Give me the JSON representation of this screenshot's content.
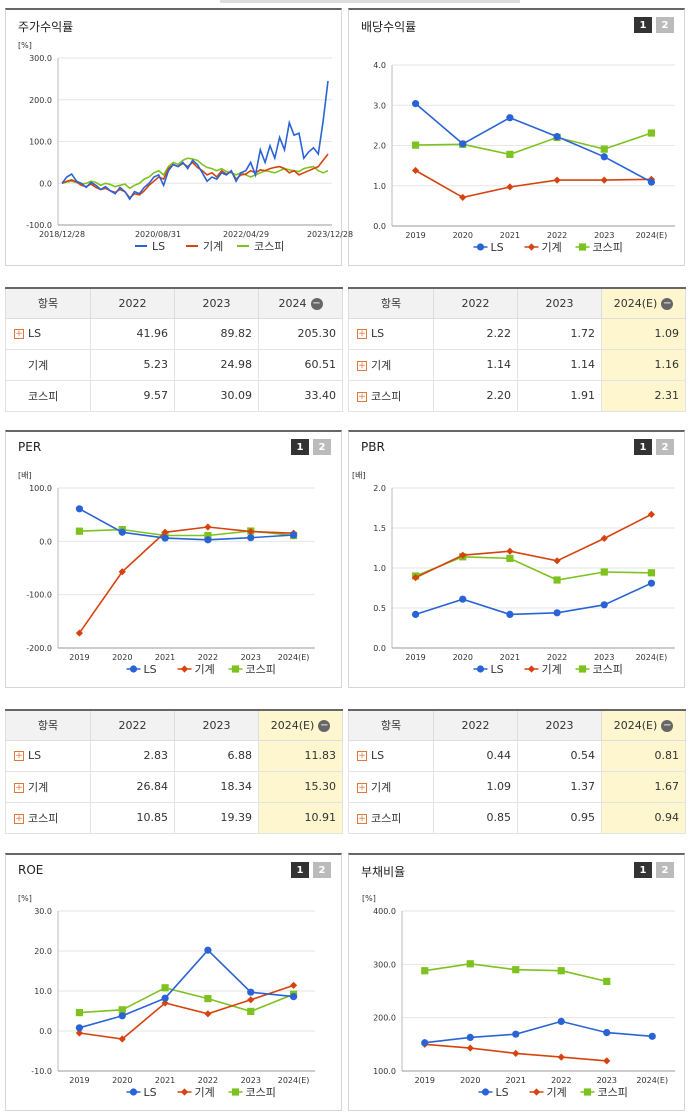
{
  "panels": [
    {
      "id": "p1",
      "title": "주가수익률",
      "buttons": [],
      "unit": "[%]"
    },
    {
      "id": "p2",
      "title": "배당수익률",
      "buttons": [
        "1",
        "2"
      ],
      "unit": ""
    },
    {
      "id": "p3",
      "title": "PER",
      "buttons": [
        "1",
        "2"
      ],
      "unit": "[배]"
    },
    {
      "id": "p4",
      "title": "PBR",
      "buttons": [
        "1",
        "2"
      ],
      "unit": "[배]"
    },
    {
      "id": "p5",
      "title": "ROE",
      "buttons": [
        "1",
        "2"
      ],
      "unit": "[%]"
    },
    {
      "id": "p6",
      "title": "부채비율",
      "buttons": [
        "1",
        "2"
      ],
      "unit": "[%]"
    }
  ],
  "colors": {
    "LS": "#2a63d6",
    "기계": "#d6430f",
    "코스피": "#7dc21e"
  },
  "chart_data": [
    {
      "type": "line",
      "id": "p1",
      "title": "주가수익률",
      "ylabel": "[%]",
      "ylim": [
        -100,
        300
      ],
      "yticks": [
        -100,
        0,
        100,
        200,
        300
      ],
      "xticklabels": [
        "2018/12/28",
        "2020/08/31",
        "2022/04/29",
        "2023/12/28"
      ],
      "series": [
        {
          "name": "LS",
          "values": [
            0,
            15,
            22,
            5,
            0,
            -10,
            2,
            -5,
            -15,
            -8,
            -18,
            -25,
            -10,
            -20,
            -38,
            -20,
            -25,
            -10,
            0,
            15,
            20,
            -5,
            30,
            45,
            40,
            50,
            35,
            55,
            45,
            25,
            5,
            15,
            10,
            25,
            20,
            30,
            5,
            25,
            30,
            50,
            20,
            80,
            50,
            90,
            60,
            110,
            80,
            145,
            115,
            120,
            60,
            75,
            85,
            70,
            150,
            245
          ]
        },
        {
          "name": "기계",
          "values": [
            0,
            5,
            8,
            3,
            -5,
            -8,
            -2,
            -10,
            -15,
            -12,
            -18,
            -22,
            -15,
            -20,
            -35,
            -25,
            -28,
            -18,
            -5,
            5,
            15,
            10,
            35,
            45,
            40,
            48,
            40,
            50,
            38,
            30,
            20,
            25,
            15,
            30,
            22,
            28,
            10,
            20,
            22,
            30,
            25,
            32,
            30,
            35,
            38,
            40,
            35,
            25,
            30,
            20,
            25,
            30,
            35,
            40,
            55,
            70
          ]
        },
        {
          "name": "코스피",
          "values": [
            0,
            3,
            5,
            2,
            -2,
            0,
            5,
            2,
            -5,
            0,
            -3,
            -8,
            -5,
            -2,
            -12,
            -5,
            0,
            10,
            15,
            25,
            30,
            20,
            40,
            50,
            45,
            55,
            60,
            58,
            55,
            45,
            38,
            35,
            30,
            35,
            28,
            25,
            20,
            25,
            20,
            15,
            20,
            25,
            30,
            28,
            25,
            30,
            35,
            32,
            30,
            28,
            35,
            38,
            40,
            30,
            25,
            30
          ]
        }
      ],
      "legend": [
        "LS",
        "기계",
        "코스피"
      ]
    },
    {
      "type": "line",
      "id": "p2",
      "title": "배당수익률",
      "ylim": [
        0,
        4
      ],
      "yticks": [
        0,
        1,
        2,
        3,
        4
      ],
      "x": [
        "2019",
        "2020",
        "2021",
        "2022",
        "2023",
        "2024(E)"
      ],
      "series": [
        {
          "name": "LS",
          "values": [
            3.04,
            2.04,
            2.69,
            2.22,
            1.72,
            1.09
          ]
        },
        {
          "name": "기계",
          "values": [
            1.38,
            0.71,
            0.97,
            1.14,
            1.14,
            1.16
          ]
        },
        {
          "name": "코스피",
          "values": [
            2.01,
            2.03,
            1.78,
            2.2,
            1.91,
            2.31
          ]
        }
      ],
      "legend": [
        "LS",
        "기계",
        "코스피"
      ]
    },
    {
      "type": "line",
      "id": "p3",
      "title": "PER",
      "ylabel": "[배]",
      "ylim": [
        -200,
        100
      ],
      "yticks": [
        -200,
        -100,
        0,
        100
      ],
      "x": [
        "2019",
        "2020",
        "2021",
        "2022",
        "2023",
        "2024(E)"
      ],
      "series": [
        {
          "name": "LS",
          "values": [
            61,
            17,
            6,
            2.83,
            6.88,
            11.83
          ]
        },
        {
          "name": "기계",
          "values": [
            -172,
            -57,
            17,
            26.84,
            18.34,
            15.3
          ]
        },
        {
          "name": "코스피",
          "values": [
            19,
            22,
            11,
            10.85,
            19.39,
            10.91
          ]
        }
      ],
      "legend": [
        "LS",
        "기계",
        "코스피"
      ]
    },
    {
      "type": "line",
      "id": "p4",
      "title": "PBR",
      "ylabel": "[배]",
      "ylim": [
        0,
        2
      ],
      "yticks": [
        0,
        0.5,
        1,
        1.5,
        2
      ],
      "x": [
        "2019",
        "2020",
        "2021",
        "2022",
        "2023",
        "2024(E)"
      ],
      "series": [
        {
          "name": "LS",
          "values": [
            0.42,
            0.61,
            0.42,
            0.44,
            0.54,
            0.81
          ]
        },
        {
          "name": "기계",
          "values": [
            0.88,
            1.16,
            1.21,
            1.09,
            1.37,
            1.67
          ]
        },
        {
          "name": "코스피",
          "values": [
            0.9,
            1.14,
            1.12,
            0.85,
            0.95,
            0.94
          ]
        }
      ],
      "legend": [
        "LS",
        "기계",
        "코스피"
      ]
    },
    {
      "type": "line",
      "id": "p5",
      "title": "ROE",
      "ylabel": "[%]",
      "ylim": [
        -10,
        30
      ],
      "yticks": [
        -10,
        0,
        10,
        20,
        30
      ],
      "x": [
        "2019",
        "2020",
        "2021",
        "2022",
        "2023",
        "2024(E)"
      ],
      "series": [
        {
          "name": "LS",
          "values": [
            0.8,
            3.8,
            8.2,
            20.2,
            9.7,
            8.6
          ]
        },
        {
          "name": "기계",
          "values": [
            -0.5,
            -2,
            7,
            4.3,
            7.8,
            11.4
          ]
        },
        {
          "name": "코스피",
          "values": [
            4.6,
            5.3,
            10.8,
            8.1,
            4.9,
            9.2
          ]
        }
      ],
      "legend": [
        "LS",
        "기계",
        "코스피"
      ]
    },
    {
      "type": "line",
      "id": "p6",
      "title": "부채비율",
      "ylabel": "[%]",
      "ylim": [
        100,
        400
      ],
      "yticks": [
        100,
        200,
        300,
        400
      ],
      "x": [
        "2019",
        "2020",
        "2021",
        "2022",
        "2023",
        "2024(E)"
      ],
      "series": [
        {
          "name": "LS",
          "values": [
            153,
            163,
            169,
            193,
            172,
            165
          ]
        },
        {
          "name": "기계",
          "values": [
            150,
            143,
            133,
            126,
            119,
            null
          ]
        },
        {
          "name": "코스피",
          "values": [
            288,
            301,
            290,
            288,
            268,
            null
          ]
        }
      ],
      "legend": [
        "LS",
        "기계",
        "코스피"
      ]
    }
  ],
  "tables": [
    {
      "id": "t1",
      "headers": [
        "항목",
        "2022",
        "2023",
        "2024"
      ],
      "minus": true,
      "hl": false,
      "rows": [
        {
          "label": "LS",
          "plus": true,
          "v": [
            "41.96",
            "89.82",
            "205.30"
          ]
        },
        {
          "label": "기계",
          "plus": false,
          "v": [
            "5.23",
            "24.98",
            "60.51"
          ]
        },
        {
          "label": "코스피",
          "plus": false,
          "v": [
            "9.57",
            "30.09",
            "33.40"
          ]
        }
      ]
    },
    {
      "id": "t2",
      "headers": [
        "항목",
        "2022",
        "2023",
        "2024(E)"
      ],
      "minus": true,
      "hl": true,
      "rows": [
        {
          "label": "LS",
          "plus": true,
          "v": [
            "2.22",
            "1.72",
            "1.09"
          ]
        },
        {
          "label": "기계",
          "plus": true,
          "v": [
            "1.14",
            "1.14",
            "1.16"
          ]
        },
        {
          "label": "코스피",
          "plus": true,
          "v": [
            "2.20",
            "1.91",
            "2.31"
          ]
        }
      ]
    },
    {
      "id": "t3",
      "headers": [
        "항목",
        "2022",
        "2023",
        "2024(E)"
      ],
      "minus": true,
      "hl": true,
      "rows": [
        {
          "label": "LS",
          "plus": true,
          "v": [
            "2.83",
            "6.88",
            "11.83"
          ]
        },
        {
          "label": "기계",
          "plus": true,
          "v": [
            "26.84",
            "18.34",
            "15.30"
          ]
        },
        {
          "label": "코스피",
          "plus": true,
          "v": [
            "10.85",
            "19.39",
            "10.91"
          ]
        }
      ]
    },
    {
      "id": "t4",
      "headers": [
        "항목",
        "2022",
        "2023",
        "2024(E)"
      ],
      "minus": true,
      "hl": true,
      "rows": [
        {
          "label": "LS",
          "plus": true,
          "v": [
            "0.44",
            "0.54",
            "0.81"
          ]
        },
        {
          "label": "기계",
          "plus": true,
          "v": [
            "1.09",
            "1.37",
            "1.67"
          ]
        },
        {
          "label": "코스피",
          "plus": true,
          "v": [
            "0.85",
            "0.95",
            "0.94"
          ]
        }
      ]
    }
  ]
}
